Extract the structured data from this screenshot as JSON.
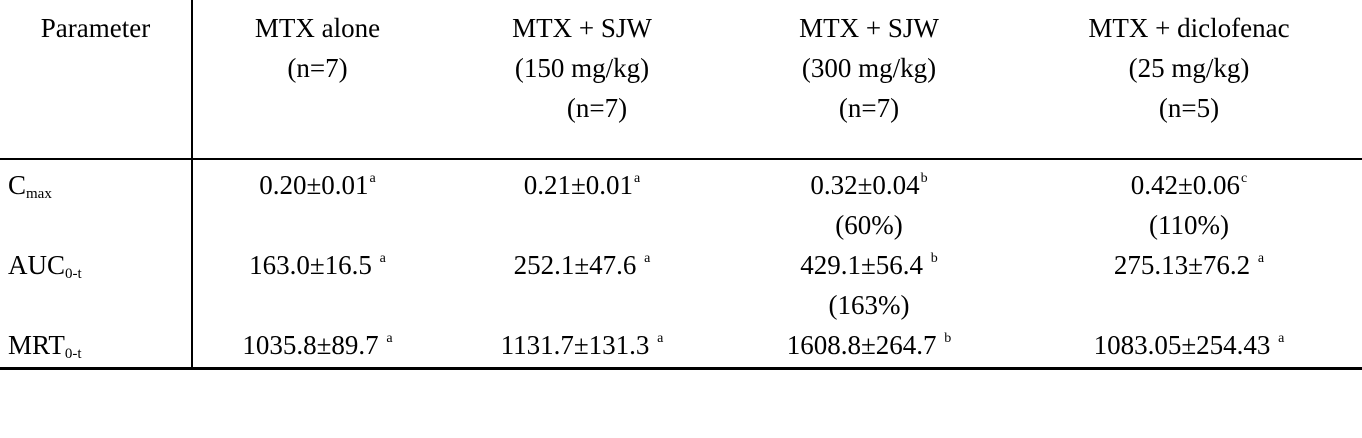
{
  "table": {
    "headers": [
      {
        "lines": [
          "Parameter"
        ]
      },
      {
        "lines": [
          "MTX alone",
          "(n=7)"
        ]
      },
      {
        "lines": [
          "MTX + SJW",
          "(150 mg/kg)",
          "(n=7)"
        ]
      },
      {
        "lines": [
          "MTX + SJW",
          "(300 mg/kg)",
          "(n=7)"
        ]
      },
      {
        "lines": [
          "MTX + diclofenac",
          "(25 mg/kg)",
          "(n=5)"
        ]
      }
    ],
    "rows": [
      {
        "param": {
          "main": "C",
          "sub": "max"
        },
        "cells": [
          {
            "value": "0.20±0.01",
            "sup": "a",
            "note": ""
          },
          {
            "value": "0.21±0.01",
            "sup": "a",
            "note": ""
          },
          {
            "value": "0.32±0.04",
            "sup": "b",
            "note": "(60%)"
          },
          {
            "value": "0.42±0.06",
            "sup": "c",
            "note": "(110%)"
          }
        ]
      },
      {
        "param": {
          "main": "AUC",
          "sub": "0-t"
        },
        "cells": [
          {
            "value": "163.0±16.5 ",
            "sup": "a",
            "note": ""
          },
          {
            "value": "252.1±47.6 ",
            "sup": "a",
            "note": ""
          },
          {
            "value": "429.1±56.4 ",
            "sup": "b",
            "note": "(163%)"
          },
          {
            "value": "275.13±76.2 ",
            "sup": "a",
            "note": ""
          }
        ]
      },
      {
        "param": {
          "main": "MRT",
          "sub": "0-t"
        },
        "cells": [
          {
            "value": "1035.8±89.7 ",
            "sup": "a",
            "note": ""
          },
          {
            "value": "1131.7±131.3 ",
            "sup": "a",
            "note": ""
          },
          {
            "value": "1608.8±264.7 ",
            "sup": "b",
            "note": ""
          },
          {
            "value": "1083.05±254.43 ",
            "sup": "a",
            "note": ""
          }
        ]
      }
    ]
  }
}
